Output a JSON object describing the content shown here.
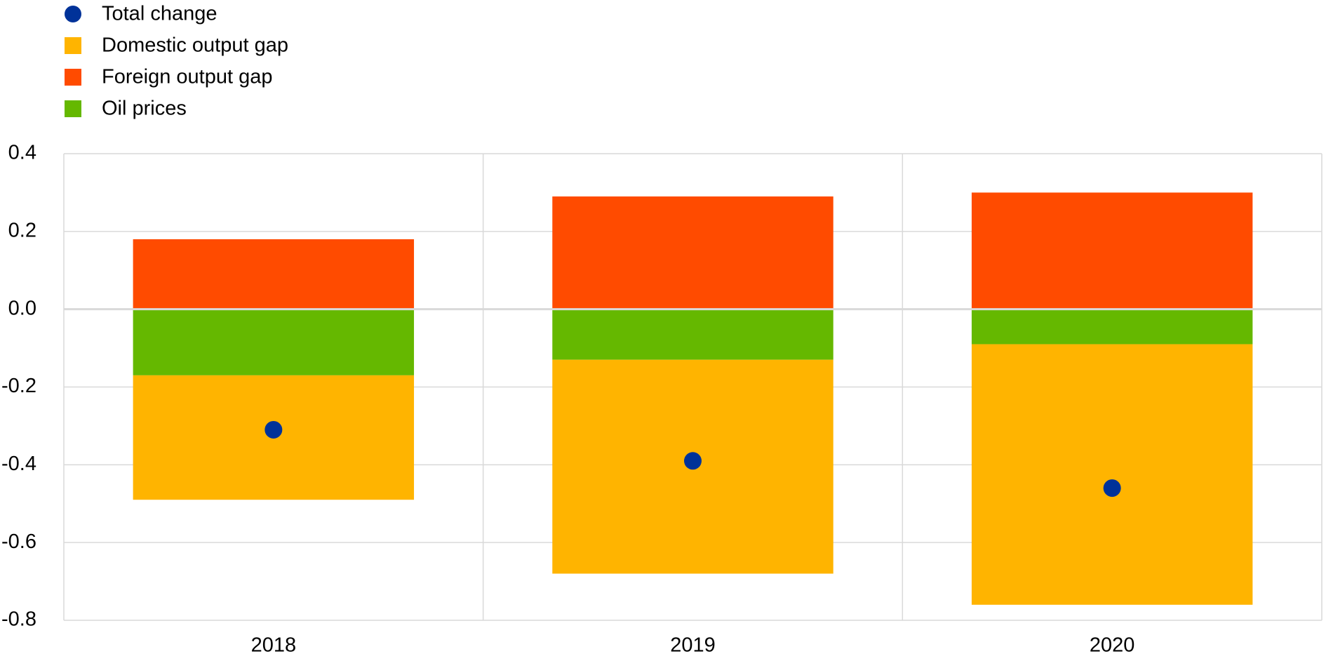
{
  "chart_data": {
    "type": "bar",
    "stacked": true,
    "categories": [
      "2018",
      "2019",
      "2020"
    ],
    "series": [
      {
        "name": "Total change",
        "type": "scatter",
        "color": "#003299",
        "values": [
          -0.31,
          -0.39,
          -0.46
        ]
      },
      {
        "name": "Domestic output gap",
        "color": "#ffb400",
        "values": [
          -0.32,
          -0.55,
          -0.67
        ]
      },
      {
        "name": "Foreign output gap",
        "color": "#ff4b00",
        "values": [
          0.18,
          0.29,
          0.3
        ]
      },
      {
        "name": "Oil prices",
        "color": "#65b800",
        "values": [
          -0.17,
          -0.13,
          -0.09
        ]
      }
    ],
    "ylim": [
      -0.8,
      0.4
    ],
    "yticks": [
      -0.8,
      -0.6,
      -0.4,
      -0.2,
      {
        "value": 0,
        "label": "0.0"
      },
      0.2,
      0.4
    ],
    "grid": true,
    "legend": "top-left"
  }
}
